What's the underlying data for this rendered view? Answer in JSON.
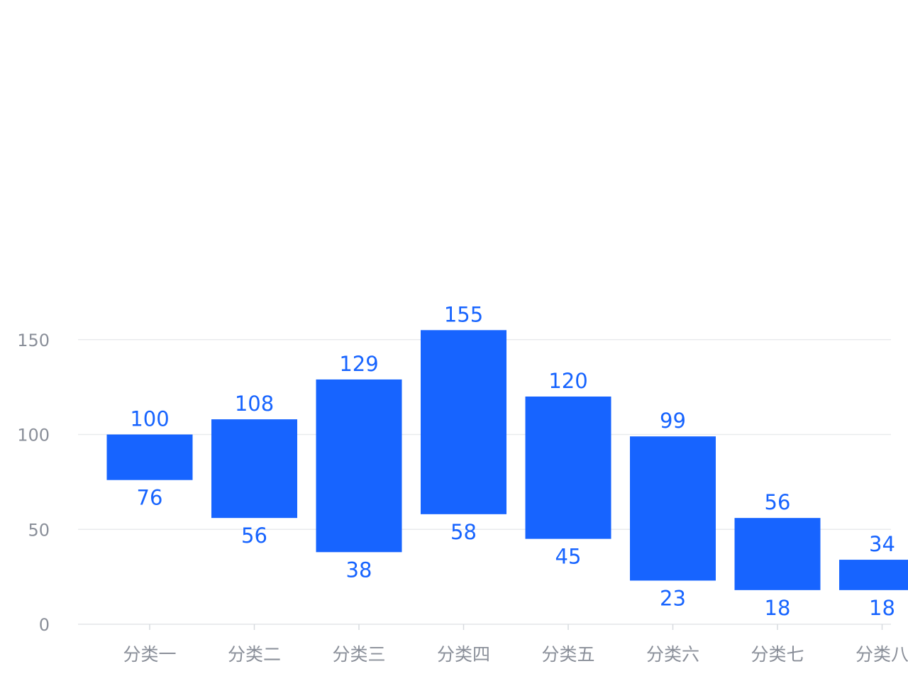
{
  "chart_data": {
    "type": "bar",
    "subtype": "range-bar",
    "title": "",
    "xlabel": "",
    "ylabel": "",
    "categories": [
      "分类一",
      "分类二",
      "分类三",
      "分类四",
      "分类五",
      "分类六",
      "分类七",
      "分类八"
    ],
    "series": [
      {
        "low": [
          76,
          56,
          38,
          58,
          45,
          23,
          18,
          18
        ],
        "high": [
          100,
          108,
          129,
          155,
          120,
          99,
          56,
          34
        ]
      }
    ],
    "ylim": [
      0,
      160
    ],
    "yticks": [
      0,
      50,
      100,
      150
    ],
    "grid": true,
    "bar_color": "#1764ff",
    "label_color": "#1764ff",
    "tick_label_color": "#8a8f99",
    "grid_color": "#e9ebee"
  }
}
